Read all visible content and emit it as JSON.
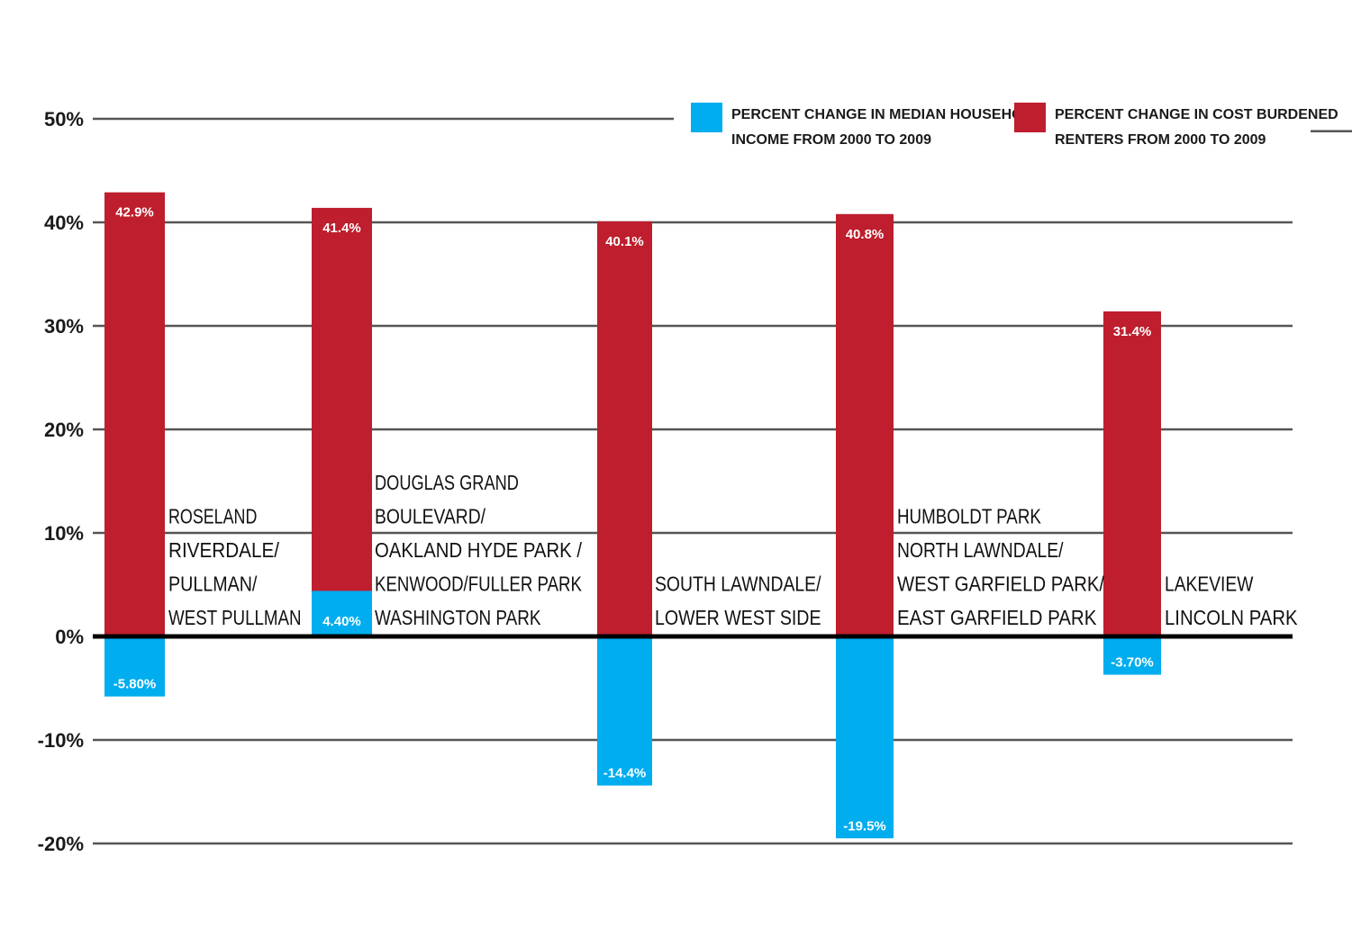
{
  "chart_data": {
    "type": "bar",
    "ylim": [
      -20,
      50
    ],
    "yticks": [
      "50%",
      "40%",
      "30%",
      "20%",
      "10%",
      "0%",
      "-10%",
      "-20%"
    ],
    "ytick_values": [
      50,
      40,
      30,
      20,
      10,
      0,
      -10,
      -20
    ],
    "grid": true,
    "legend_position": "top-right",
    "categories": [
      [
        "ROSELAND",
        "RIVERDALE/",
        "PULLMAN/",
        "WEST PULLMAN"
      ],
      [
        "DOUGLAS GRAND",
        "BOULEVARD/",
        "OAKLAND HYDE PARK /",
        "KENWOOD/FULLER PARK",
        "WASHINGTON PARK"
      ],
      [
        "SOUTH LAWNDALE/",
        "LOWER WEST SIDE"
      ],
      [
        "HUMBOLDT PARK",
        "NORTH LAWNDALE/",
        "WEST GARFIELD PARK/",
        "EAST GARFIELD PARK"
      ],
      [
        "LAKEVIEW",
        "LINCOLN PARK"
      ]
    ],
    "series": [
      {
        "name": [
          "PERCENT CHANGE IN MEDIAN HOUSEHOLD",
          "INCOME FROM 2000 TO 2009"
        ],
        "color": "#00ADEF",
        "values": [
          -5.8,
          4.4,
          -14.4,
          -19.5,
          -3.7
        ],
        "labels": [
          "-5.80%",
          "4.40%",
          "-14.4%",
          "-19.5%",
          "-3.70%"
        ]
      },
      {
        "name": [
          "PERCENT CHANGE IN COST BURDENED",
          "RENTERS FROM 2000 TO 2009"
        ],
        "color": "#BE1E2D",
        "values": [
          42.9,
          41.4,
          40.1,
          40.8,
          31.4
        ],
        "labels": [
          "42.9%",
          "41.4%",
          "40.1%",
          "40.8%",
          "31.4%"
        ]
      }
    ]
  }
}
